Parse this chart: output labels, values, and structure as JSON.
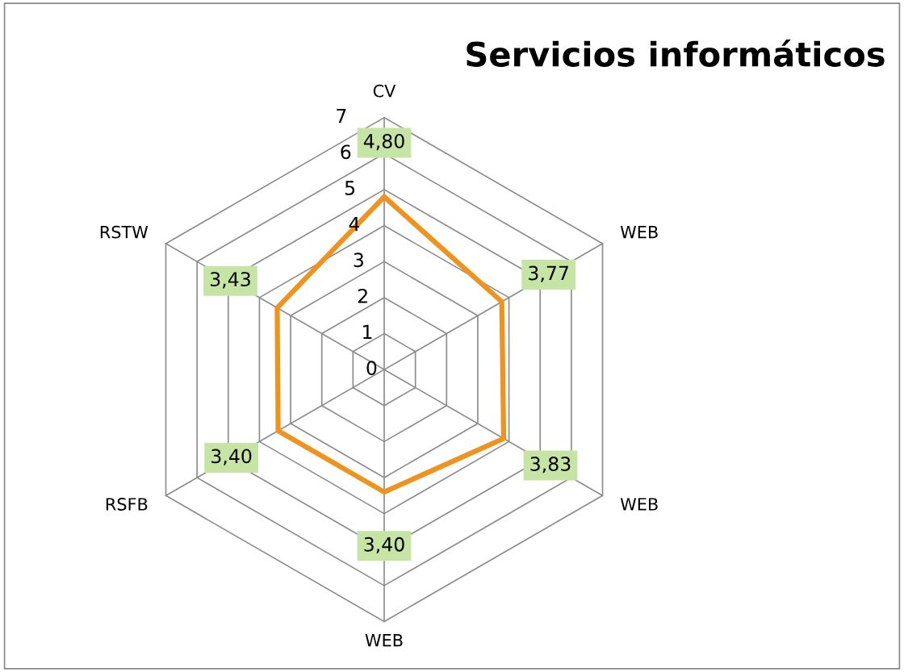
{
  "chart_data": {
    "type": "radar",
    "title": "Servicios informáticos",
    "categories": [
      "CV",
      "WEB",
      "WEB",
      "WEB",
      "RSFB",
      "RSTW"
    ],
    "series": [
      {
        "color": "#f0931e",
        "values": [
          4.8,
          3.77,
          3.83,
          3.4,
          3.4,
          3.43
        ],
        "value_labels": [
          "4,80",
          "3,77",
          "3,83",
          "3,40",
          "3,40",
          "3,43"
        ]
      }
    ],
    "ylim": [
      0,
      7
    ],
    "yticks": [
      0,
      1,
      2,
      3,
      4,
      5,
      6,
      7
    ],
    "grid": true
  }
}
